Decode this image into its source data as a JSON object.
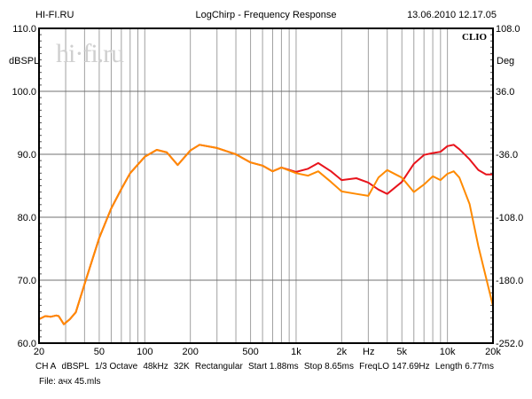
{
  "header": {
    "site": "HI-FI.RU",
    "title": "LogChirp - Frequency Response",
    "datetime": "13.06.2010 12.17.05"
  },
  "watermark": "hi·fi.ru",
  "brand": "CLIO",
  "footer": {
    "params": [
      "CH A",
      "dBSPL",
      "1/3 Octave",
      "48kHz",
      "32K",
      "Rectangular",
      "Start 1.88ms",
      "Stop 8.65ms",
      "FreqLO 147.69Hz",
      "Length 6.77ms"
    ],
    "file": "File: ачх 45.mls"
  },
  "colors": {
    "series1": "#e8141c",
    "series2": "#ff8a00",
    "grid": "#a0a0a0",
    "grid_major": "#707070"
  },
  "chart_data": {
    "type": "line",
    "xscale": "log",
    "xlim": [
      20,
      20000
    ],
    "ylim": [
      60,
      110
    ],
    "ylabel": "dBSPL",
    "y2label": "Deg",
    "y2lim": [
      -252,
      108
    ],
    "xlabel": "Hz",
    "xticks": [
      {
        "v": 20,
        "l": "20"
      },
      {
        "v": 50,
        "l": "50"
      },
      {
        "v": 100,
        "l": "100"
      },
      {
        "v": 200,
        "l": "200"
      },
      {
        "v": 500,
        "l": "500"
      },
      {
        "v": 1000,
        "l": "1k"
      },
      {
        "v": 2000,
        "l": "2k"
      },
      {
        "v": 5000,
        "l": "5k"
      },
      {
        "v": 10000,
        "l": "10k"
      },
      {
        "v": 20000,
        "l": "20k"
      }
    ],
    "yticks": [
      {
        "v": 110,
        "l": "110.0"
      },
      {
        "v": 100,
        "l": "100.0"
      },
      {
        "v": 90,
        "l": "90.0"
      },
      {
        "v": 80,
        "l": "80.0"
      },
      {
        "v": 70,
        "l": "70.0"
      },
      {
        "v": 60,
        "l": "60.0"
      }
    ],
    "y2ticks": [
      {
        "v": 110,
        "l": "108.0"
      },
      {
        "v": 100,
        "l": "36.0"
      },
      {
        "v": 90,
        "l": "-36.0"
      },
      {
        "v": 80,
        "l": "-108.0"
      },
      {
        "v": 70,
        "l": "-180.0"
      },
      {
        "v": 60,
        "l": "-252.0"
      }
    ],
    "grid": true,
    "series": [
      {
        "name": "curve-red",
        "color": "#e8141c",
        "points": [
          [
            20,
            63.8
          ],
          [
            22,
            64.3
          ],
          [
            24,
            64.2
          ],
          [
            26,
            64.4
          ],
          [
            27,
            64.3
          ],
          [
            29.2,
            63.0
          ],
          [
            32,
            63.8
          ],
          [
            35,
            64.9
          ],
          [
            40,
            69.4
          ],
          [
            50,
            76.7
          ],
          [
            60,
            81.4
          ],
          [
            70,
            84.5
          ],
          [
            80,
            87.0
          ],
          [
            100,
            89.6
          ],
          [
            120,
            90.7
          ],
          [
            140,
            90.3
          ],
          [
            165,
            88.3
          ],
          [
            200,
            90.6
          ],
          [
            230,
            91.5
          ],
          [
            300,
            91.0
          ],
          [
            400,
            90.0
          ],
          [
            500,
            88.7
          ],
          [
            600,
            88.2
          ],
          [
            700,
            87.3
          ],
          [
            800,
            87.9
          ],
          [
            1000,
            87.2
          ],
          [
            1200,
            87.7
          ],
          [
            1400,
            88.6
          ],
          [
            1700,
            87.3
          ],
          [
            2000,
            85.9
          ],
          [
            2500,
            86.2
          ],
          [
            3000,
            85.5
          ],
          [
            3500,
            84.4
          ],
          [
            4000,
            83.7
          ],
          [
            5000,
            85.6
          ],
          [
            6000,
            88.5
          ],
          [
            7000,
            89.9
          ],
          [
            8000,
            90.2
          ],
          [
            9000,
            90.4
          ],
          [
            10000,
            91.3
          ],
          [
            11000,
            91.5
          ],
          [
            12000,
            90.8
          ],
          [
            14000,
            89.2
          ],
          [
            16000,
            87.5
          ],
          [
            18000,
            86.8
          ],
          [
            20000,
            86.8
          ]
        ]
      },
      {
        "name": "curve-orange",
        "color": "#ff8a00",
        "points": [
          [
            20,
            63.8
          ],
          [
            22,
            64.3
          ],
          [
            24,
            64.2
          ],
          [
            26,
            64.4
          ],
          [
            27,
            64.3
          ],
          [
            29.2,
            63.0
          ],
          [
            32,
            63.8
          ],
          [
            35,
            64.9
          ],
          [
            40,
            69.4
          ],
          [
            50,
            76.7
          ],
          [
            60,
            81.4
          ],
          [
            70,
            84.5
          ],
          [
            80,
            87.0
          ],
          [
            100,
            89.6
          ],
          [
            120,
            90.7
          ],
          [
            140,
            90.3
          ],
          [
            165,
            88.3
          ],
          [
            200,
            90.6
          ],
          [
            230,
            91.5
          ],
          [
            300,
            91.0
          ],
          [
            400,
            90.0
          ],
          [
            500,
            88.7
          ],
          [
            600,
            88.2
          ],
          [
            700,
            87.3
          ],
          [
            800,
            87.9
          ],
          [
            1000,
            87.0
          ],
          [
            1200,
            86.6
          ],
          [
            1400,
            87.3
          ],
          [
            1700,
            85.6
          ],
          [
            2000,
            84.1
          ],
          [
            2500,
            83.7
          ],
          [
            3000,
            83.4
          ],
          [
            3500,
            86.3
          ],
          [
            4000,
            87.5
          ],
          [
            5000,
            86.3
          ],
          [
            6000,
            84.0
          ],
          [
            7000,
            85.2
          ],
          [
            8000,
            86.5
          ],
          [
            9000,
            85.9
          ],
          [
            10000,
            86.9
          ],
          [
            11000,
            87.3
          ],
          [
            12000,
            86.3
          ],
          [
            14000,
            82.1
          ],
          [
            16000,
            75.4
          ],
          [
            18000,
            70.4
          ],
          [
            20000,
            65.9
          ]
        ]
      }
    ]
  }
}
